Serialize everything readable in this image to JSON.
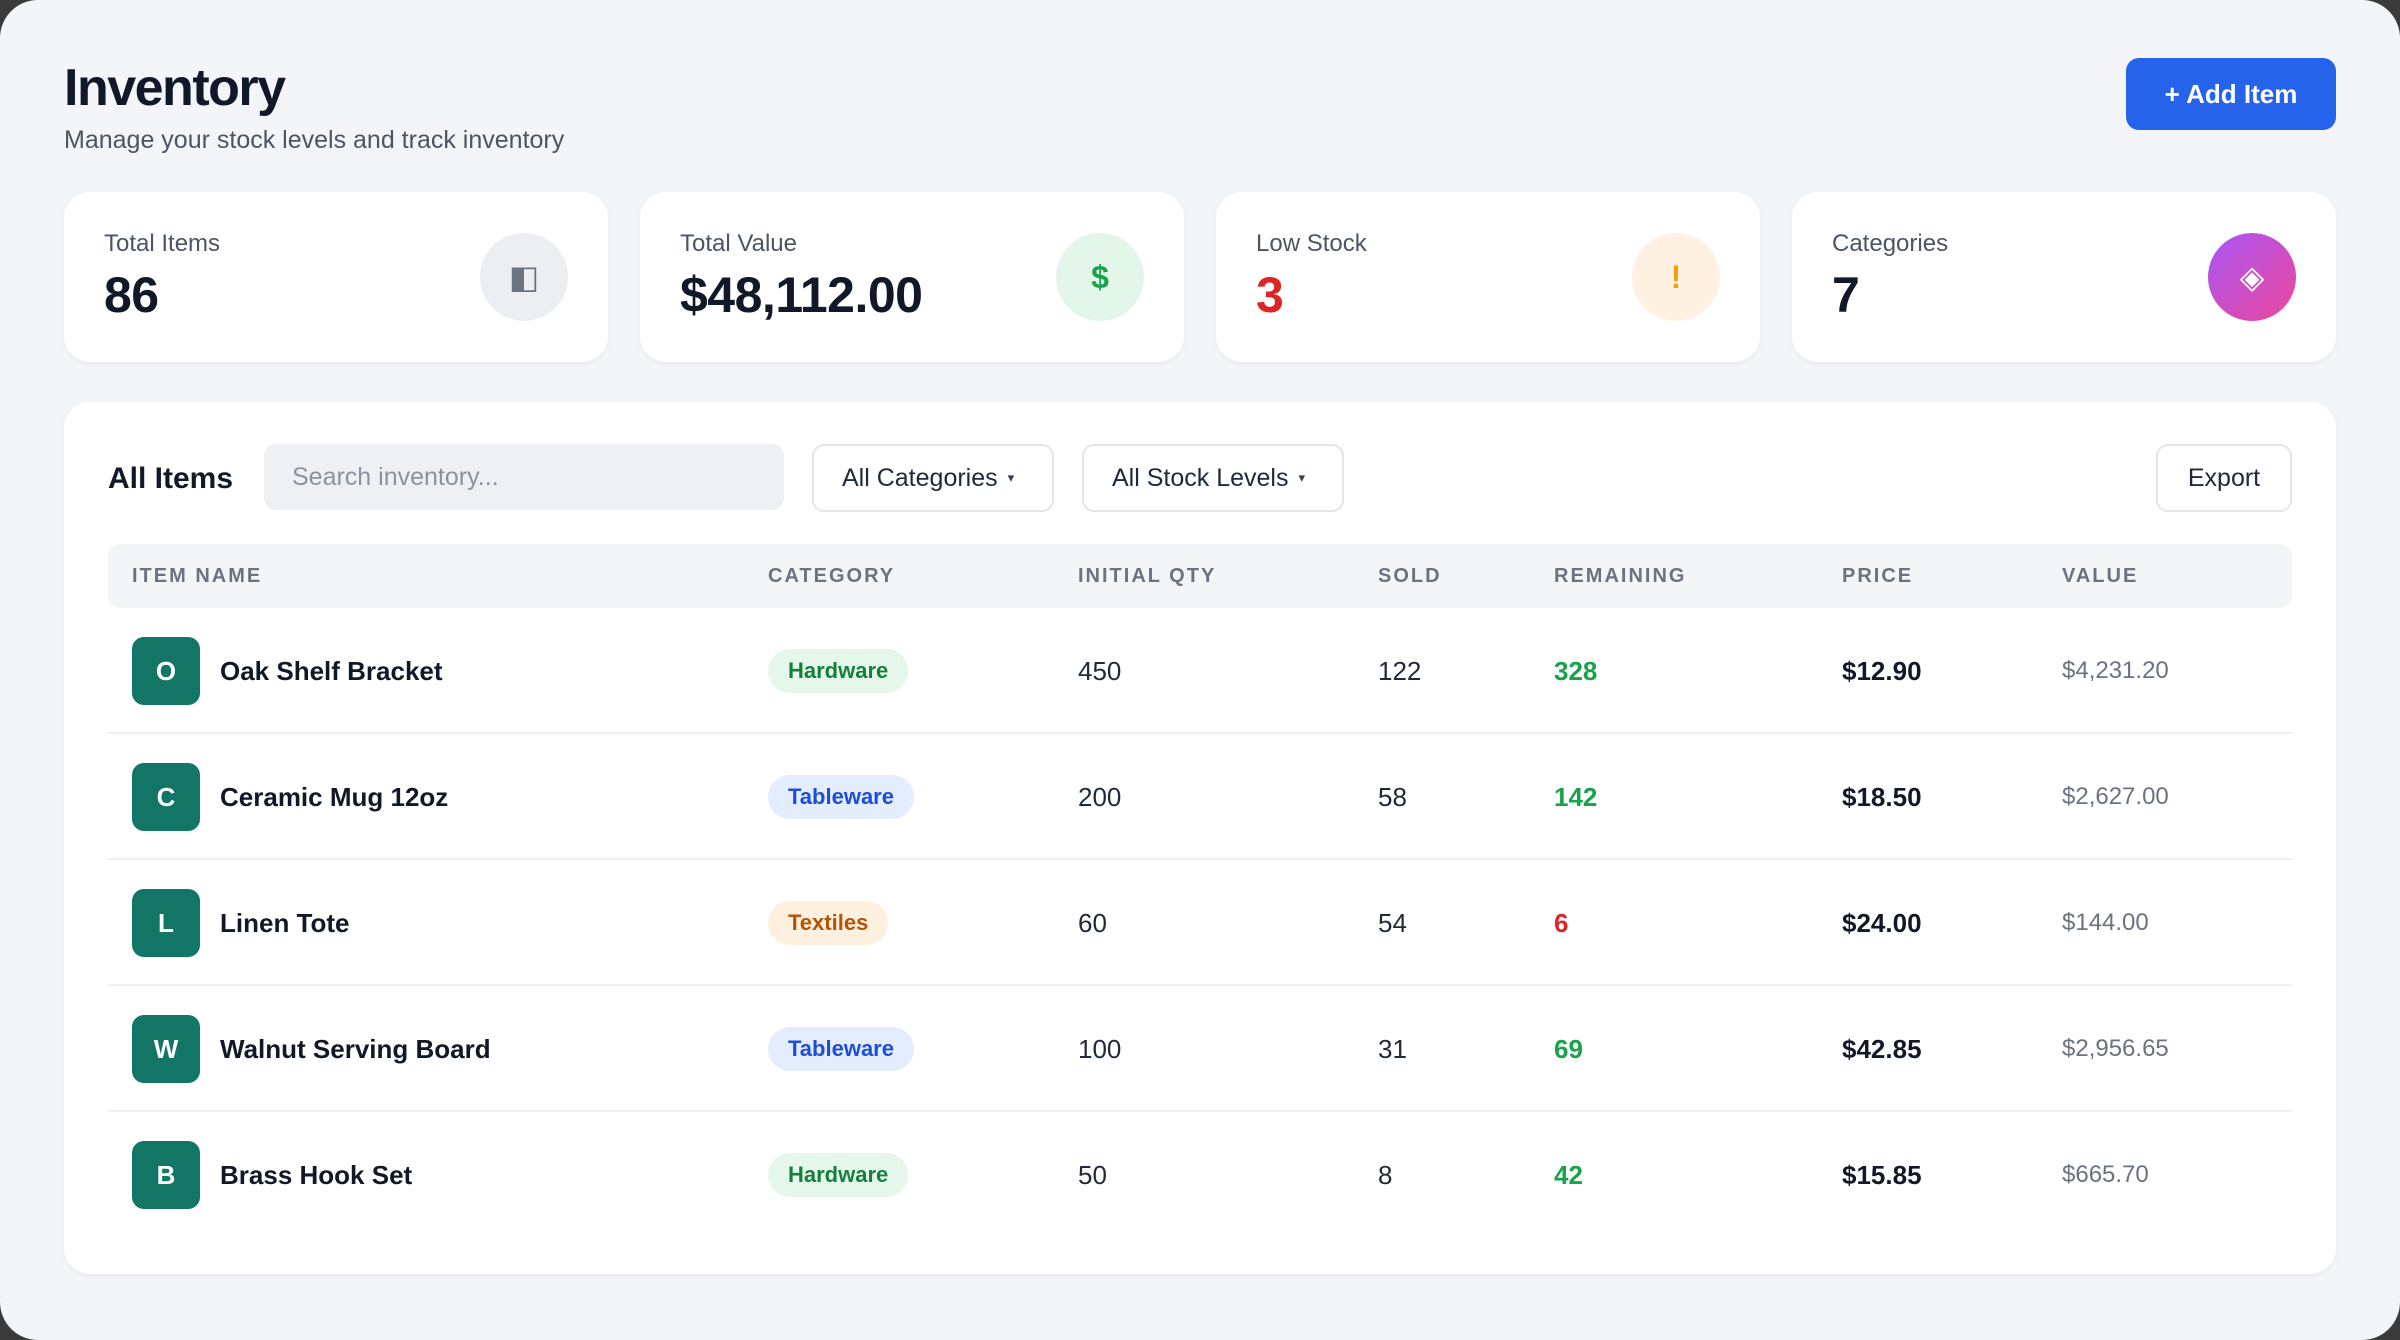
{
  "header": {
    "title": "Inventory",
    "subtitle": "Manage your stock levels and track inventory",
    "add_button": "+ Add Item"
  },
  "stats": [
    {
      "label": "Total Items",
      "value": "86",
      "icon": "box-icon",
      "glyph": "◧"
    },
    {
      "label": "Total Value",
      "value": "$48,112.00",
      "icon": "dollar-icon",
      "glyph": "$"
    },
    {
      "label": "Low Stock",
      "value": "3",
      "icon": "alert-icon",
      "glyph": "!"
    },
    {
      "label": "Categories",
      "value": "7",
      "icon": "diamond-icon",
      "glyph": "◈"
    }
  ],
  "toolbar": {
    "title": "All Items",
    "search_placeholder": "Search inventory...",
    "category_filter": "All Categories",
    "stock_filter": "All Stock Levels",
    "caret": "▾",
    "export": "Export"
  },
  "table": {
    "columns": [
      "ITEM NAME",
      "CATEGORY",
      "INITIAL QTY",
      "SOLD",
      "REMAINING",
      "PRICE",
      "VALUE"
    ],
    "rows": [
      {
        "initial": "O",
        "name": "Oak Shelf Bracket",
        "category": "Hardware",
        "initial_qty": "450",
        "sold": "122",
        "remaining": "328",
        "price": "$12.90",
        "value": "$4,231.20"
      },
      {
        "initial": "C",
        "name": "Ceramic Mug 12oz",
        "category": "Tableware",
        "initial_qty": "200",
        "sold": "58",
        "remaining": "142",
        "price": "$18.50",
        "value": "$2,627.00"
      },
      {
        "initial": "L",
        "name": "Linen Tote",
        "category": "Textiles",
        "initial_qty": "60",
        "sold": "54",
        "remaining": "6",
        "price": "$24.00",
        "value": "$144.00"
      },
      {
        "initial": "W",
        "name": "Walnut Serving Board",
        "category": "Tableware",
        "initial_qty": "100",
        "sold": "31",
        "remaining": "69",
        "price": "$42.85",
        "value": "$2,956.65"
      },
      {
        "initial": "B",
        "name": "Brass Hook Set",
        "category": "Hardware",
        "initial_qty": "50",
        "sold": "8",
        "remaining": "42",
        "price": "$15.85",
        "value": "$665.70"
      }
    ]
  },
  "colors": {
    "accent": "#2563eb",
    "avatar": "#127566",
    "in_stock": "#16a34a",
    "low_stock": "#dc2626"
  }
}
